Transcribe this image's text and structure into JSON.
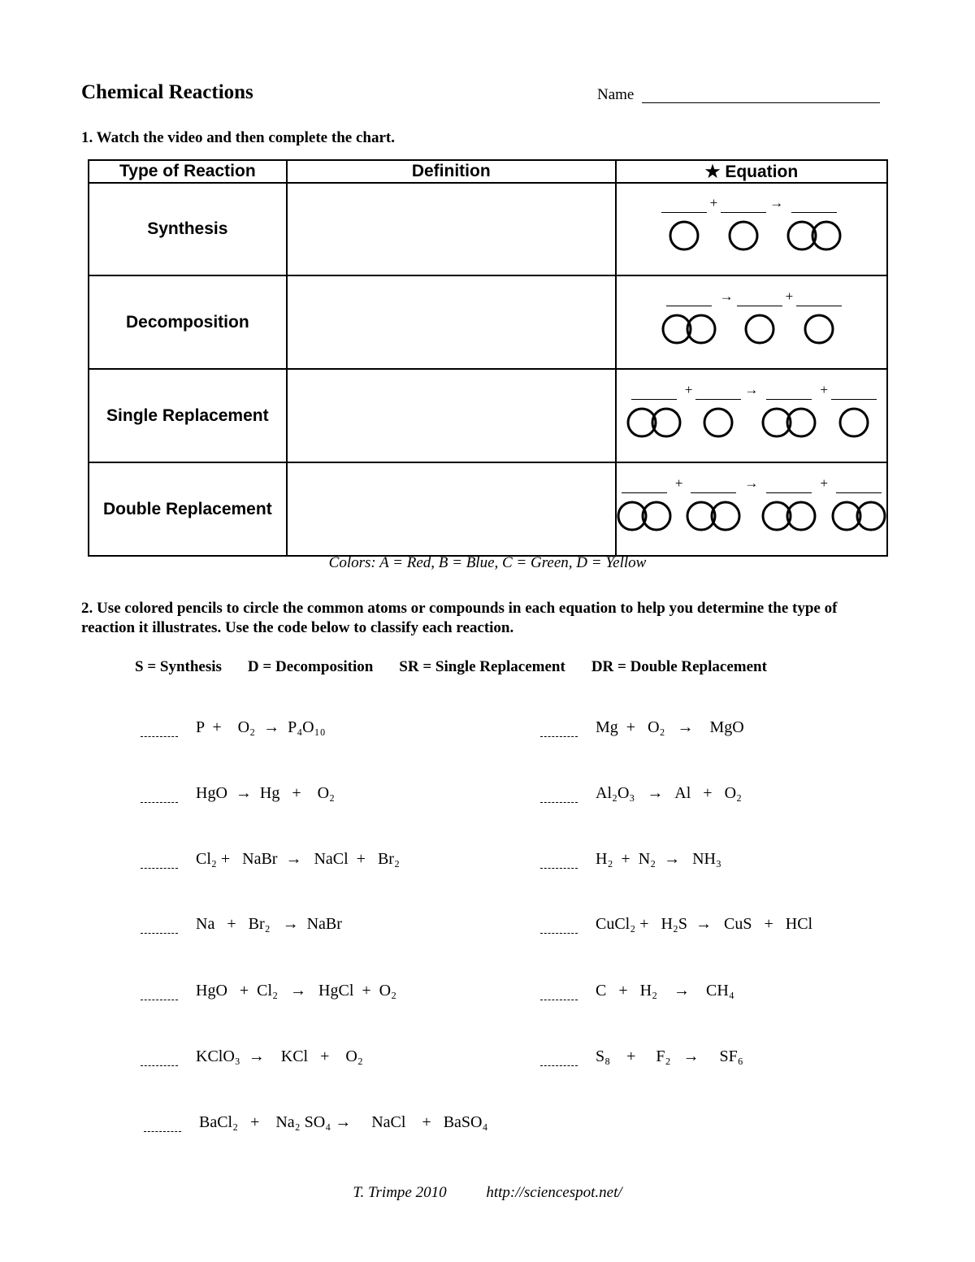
{
  "title": "Chemical Reactions",
  "name_label": "Name",
  "q1": "1. Watch the video and then complete the chart.",
  "table": {
    "headers": [
      "Type of Reaction",
      "Definition",
      "★ Equation"
    ],
    "rows": [
      {
        "type": "Synthesis",
        "definition": "",
        "terms": [
          1,
          1,
          2
        ],
        "ops": [
          "+",
          "→"
        ]
      },
      {
        "type": "Decomposition",
        "definition": "",
        "terms": [
          2,
          1,
          1
        ],
        "ops": [
          "→",
          "+"
        ]
      },
      {
        "type": "Single Replacement",
        "definition": "",
        "terms": [
          2,
          1,
          2,
          1
        ],
        "ops": [
          "+",
          "→",
          "+"
        ]
      },
      {
        "type": "Double Replacement",
        "definition": "",
        "terms": [
          2,
          2,
          2,
          2
        ],
        "ops": [
          "+",
          "→",
          "+"
        ]
      }
    ]
  },
  "colors_note": "Colors:  A = Red, B = Blue, C = Green, D = Yellow",
  "q2": "2. Use colored pencils to circle the common atoms or compounds in each equation to help you determine the type of reaction it illustrates.  Use the code below to classify each reaction.",
  "codes": [
    "S = Synthesis",
    "D = Decomposition",
    "SR = Single Replacement",
    "DR = Double Replacement"
  ],
  "equations": [
    "P  +    O₂  →  P₄O₁₀",
    "Mg  +   O₂   →    MgO",
    "HgO  →  Hg   +    O₂",
    "Al₂O₃   →   Al   +   O₂",
    "Cl₂ +   NaBr  →   NaCl  +   Br₂",
    "H₂  +  N₂  →   NH₃",
    "Na   +   Br₂   →  NaBr",
    "CuCl₂ +   H₂S  →   CuS   +   HCl",
    "HgO   +  Cl₂   →   HgCl  +  O₂",
    "C   +   H₂    →    CH₄",
    "KClO₃  →    KCl   +    O₂",
    "S₈    +     F₂   →     SF₆",
    "BaCl₂   +    Na₂ SO₄ →     NaCl    +   BaSO₄"
  ],
  "footer": {
    "author": "T. Trimpe 2010",
    "url": "http://sciencespot.net/"
  }
}
